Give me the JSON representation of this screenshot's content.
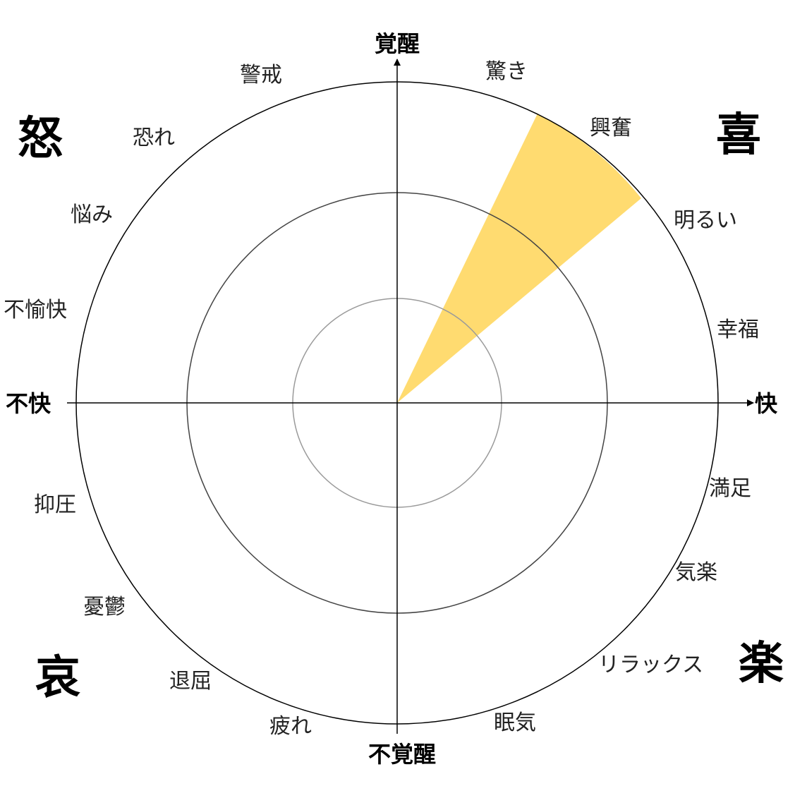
{
  "axes": {
    "top": "覚醒",
    "bottom": "不覚醒",
    "left": "不快",
    "right": "快"
  },
  "quadrants": {
    "top_left": "怒",
    "top_right": "喜",
    "bottom_left": "哀",
    "bottom_right": "楽"
  },
  "emotions": {
    "keikai": "警戒",
    "odoroki": "驚き",
    "osore": "恐れ",
    "kofun": "興奮",
    "nayami": "悩み",
    "akarui": "明るい",
    "fuyukai": "不愉快",
    "kofuku": "幸福",
    "manzoku": "満足",
    "yokuatsu": "抑圧",
    "kiraku": "気楽",
    "yuutsu": "憂鬱",
    "relax": "リラックス",
    "taikutsu": "退屈",
    "tsukare": "疲れ",
    "nemuke": "眠気"
  },
  "highlight": {
    "color": "#FFDB70",
    "label_ref": "興奮"
  },
  "colors": {
    "outer_ring": "#000000",
    "middle_ring": "#444444",
    "inner_ring": "#9a9a9a",
    "axis": "#000000"
  }
}
